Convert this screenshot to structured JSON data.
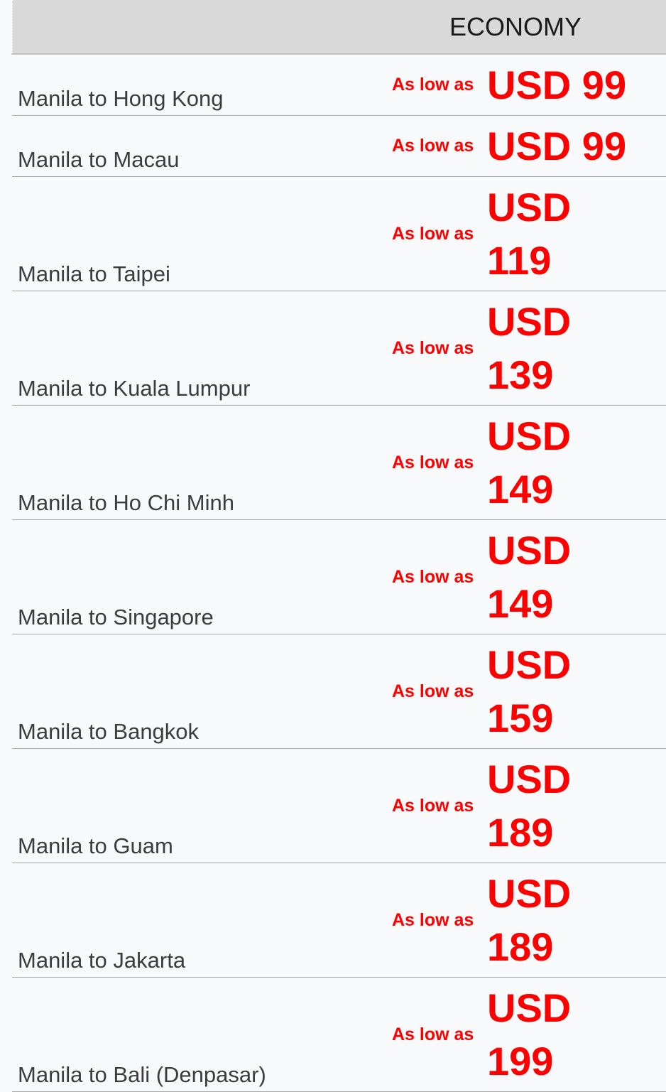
{
  "colors": {
    "accent_red": "#ff0000",
    "header_bg": "#d9d9d9",
    "row_bg": "#f8f9fa",
    "separator": "#a8a8a8",
    "route_text": "#3c3c3c",
    "header_text": "#1a1a1a"
  },
  "table": {
    "header": {
      "route_label": "",
      "fare_class": "ECONOMY"
    },
    "as_low_as_label": "As low as",
    "rows": [
      {
        "route": "Manila to Hong Kong",
        "price": "USD 99"
      },
      {
        "route": "Manila to Macau",
        "price": "USD 99"
      },
      {
        "route": "Manila to Taipei",
        "price": "USD 119"
      },
      {
        "route": "Manila to Kuala Lumpur",
        "price": "USD 139"
      },
      {
        "route": "Manila to Ho Chi Minh",
        "price": "USD 149"
      },
      {
        "route": "Manila to Singapore",
        "price": "USD 149"
      },
      {
        "route": "Manila to Bangkok",
        "price": "USD 159"
      },
      {
        "route": "Manila to Guam",
        "price": "USD 189"
      },
      {
        "route": "Manila to Jakarta",
        "price": "USD 189"
      },
      {
        "route": "Manila to Bali (Denpasar)",
        "price": "USD 199"
      }
    ]
  }
}
